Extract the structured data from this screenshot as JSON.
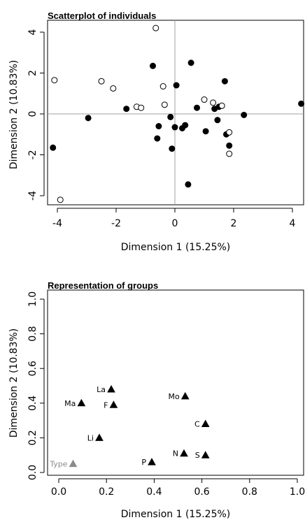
{
  "chart_data": [
    {
      "type": "scatter",
      "title": "Scatterplot of individuals",
      "xlabel": "Dimension 1 (15.25%)",
      "ylabel": "Dimension 2 (10.83%)",
      "xlim": [
        -4.4,
        4.4
      ],
      "ylim": [
        -4.5,
        4.5
      ],
      "x_ticks": [
        -4,
        -2,
        0,
        2,
        4
      ],
      "y_ticks": [
        -4,
        -2,
        0,
        2,
        4
      ],
      "reference_lines": {
        "x": 0,
        "y": 0
      },
      "series": [
        {
          "marker": "filled-circle",
          "points": [
            [
              -4.15,
              -1.65
            ],
            [
              -2.95,
              -0.2
            ],
            [
              -1.65,
              0.25
            ],
            [
              -0.75,
              2.35
            ],
            [
              -0.6,
              -1.2
            ],
            [
              -0.55,
              -0.6
            ],
            [
              -0.1,
              -1.7
            ],
            [
              -0.15,
              -0.15
            ],
            [
              0.0,
              -0.65
            ],
            [
              0.05,
              1.4
            ],
            [
              0.25,
              -0.7
            ],
            [
              0.35,
              -0.55
            ],
            [
              0.45,
              -3.45
            ],
            [
              0.55,
              2.5
            ],
            [
              0.75,
              0.3
            ],
            [
              1.05,
              -0.85
            ],
            [
              1.35,
              0.25
            ],
            [
              1.45,
              -0.3
            ],
            [
              1.5,
              0.35
            ],
            [
              1.7,
              1.6
            ],
            [
              1.75,
              -1.0
            ],
            [
              1.85,
              -1.55
            ],
            [
              2.35,
              -0.05
            ],
            [
              4.3,
              0.5
            ]
          ]
        },
        {
          "marker": "open-circle",
          "points": [
            [
              -4.1,
              1.65
            ],
            [
              -3.9,
              -4.2
            ],
            [
              -2.5,
              1.6
            ],
            [
              -2.1,
              1.25
            ],
            [
              -1.3,
              0.35
            ],
            [
              -1.15,
              0.3
            ],
            [
              -0.65,
              4.2
            ],
            [
              -0.4,
              1.35
            ],
            [
              -0.35,
              0.45
            ],
            [
              1.0,
              0.7
            ],
            [
              1.3,
              0.55
            ],
            [
              1.6,
              0.4
            ],
            [
              1.85,
              -0.9
            ],
            [
              1.85,
              -1.95
            ]
          ]
        }
      ]
    },
    {
      "type": "scatter",
      "title": "Representation of groups",
      "xlabel": "Dimension 1 (15.25%)",
      "ylabel": "Dimension 2 (10.83%)",
      "xlim": [
        0.0,
        1.0
      ],
      "ylim": [
        0.0,
        1.0
      ],
      "x_ticks": [
        "0.0",
        "0.2",
        "0.4",
        "0.6",
        "0.8",
        "1.0"
      ],
      "y_ticks": [
        "0.0",
        "0.2",
        "0.4",
        "0.6",
        "0.8",
        "1.0"
      ],
      "marker": "filled-triangle",
      "points": [
        {
          "label": "La",
          "x": 0.22,
          "y": 0.48,
          "color": "#000000"
        },
        {
          "label": "Ma",
          "x": 0.095,
          "y": 0.4,
          "color": "#000000"
        },
        {
          "label": "F",
          "x": 0.23,
          "y": 0.39,
          "color": "#000000"
        },
        {
          "label": "Mo",
          "x": 0.53,
          "y": 0.44,
          "color": "#000000"
        },
        {
          "label": "C",
          "x": 0.615,
          "y": 0.28,
          "color": "#000000"
        },
        {
          "label": "Li",
          "x": 0.17,
          "y": 0.2,
          "color": "#000000"
        },
        {
          "label": "N",
          "x": 0.525,
          "y": 0.11,
          "color": "#000000"
        },
        {
          "label": "S",
          "x": 0.615,
          "y": 0.1,
          "color": "#000000"
        },
        {
          "label": "P",
          "x": 0.39,
          "y": 0.06,
          "color": "#000000"
        },
        {
          "label": "Type",
          "x": 0.06,
          "y": 0.05,
          "color": "#8c8c8c"
        }
      ]
    }
  ]
}
